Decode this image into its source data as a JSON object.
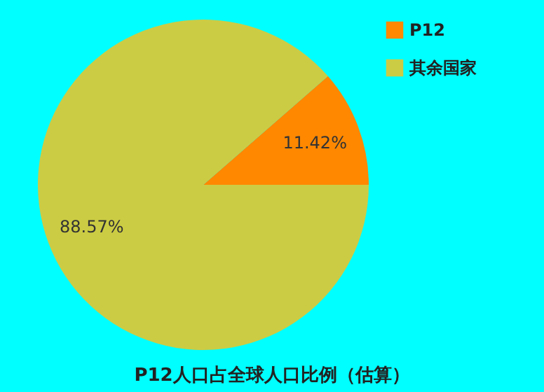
{
  "chart_data": {
    "type": "pie",
    "title": "P12人口占全球人口比例（估算）",
    "categories": [
      "P12",
      "其余国家"
    ],
    "values": [
      11.42,
      88.57
    ],
    "colors": [
      "#ff8800",
      "#cccc44"
    ],
    "value_labels": [
      "11.42%",
      "88.57%"
    ],
    "legend": "top right"
  }
}
